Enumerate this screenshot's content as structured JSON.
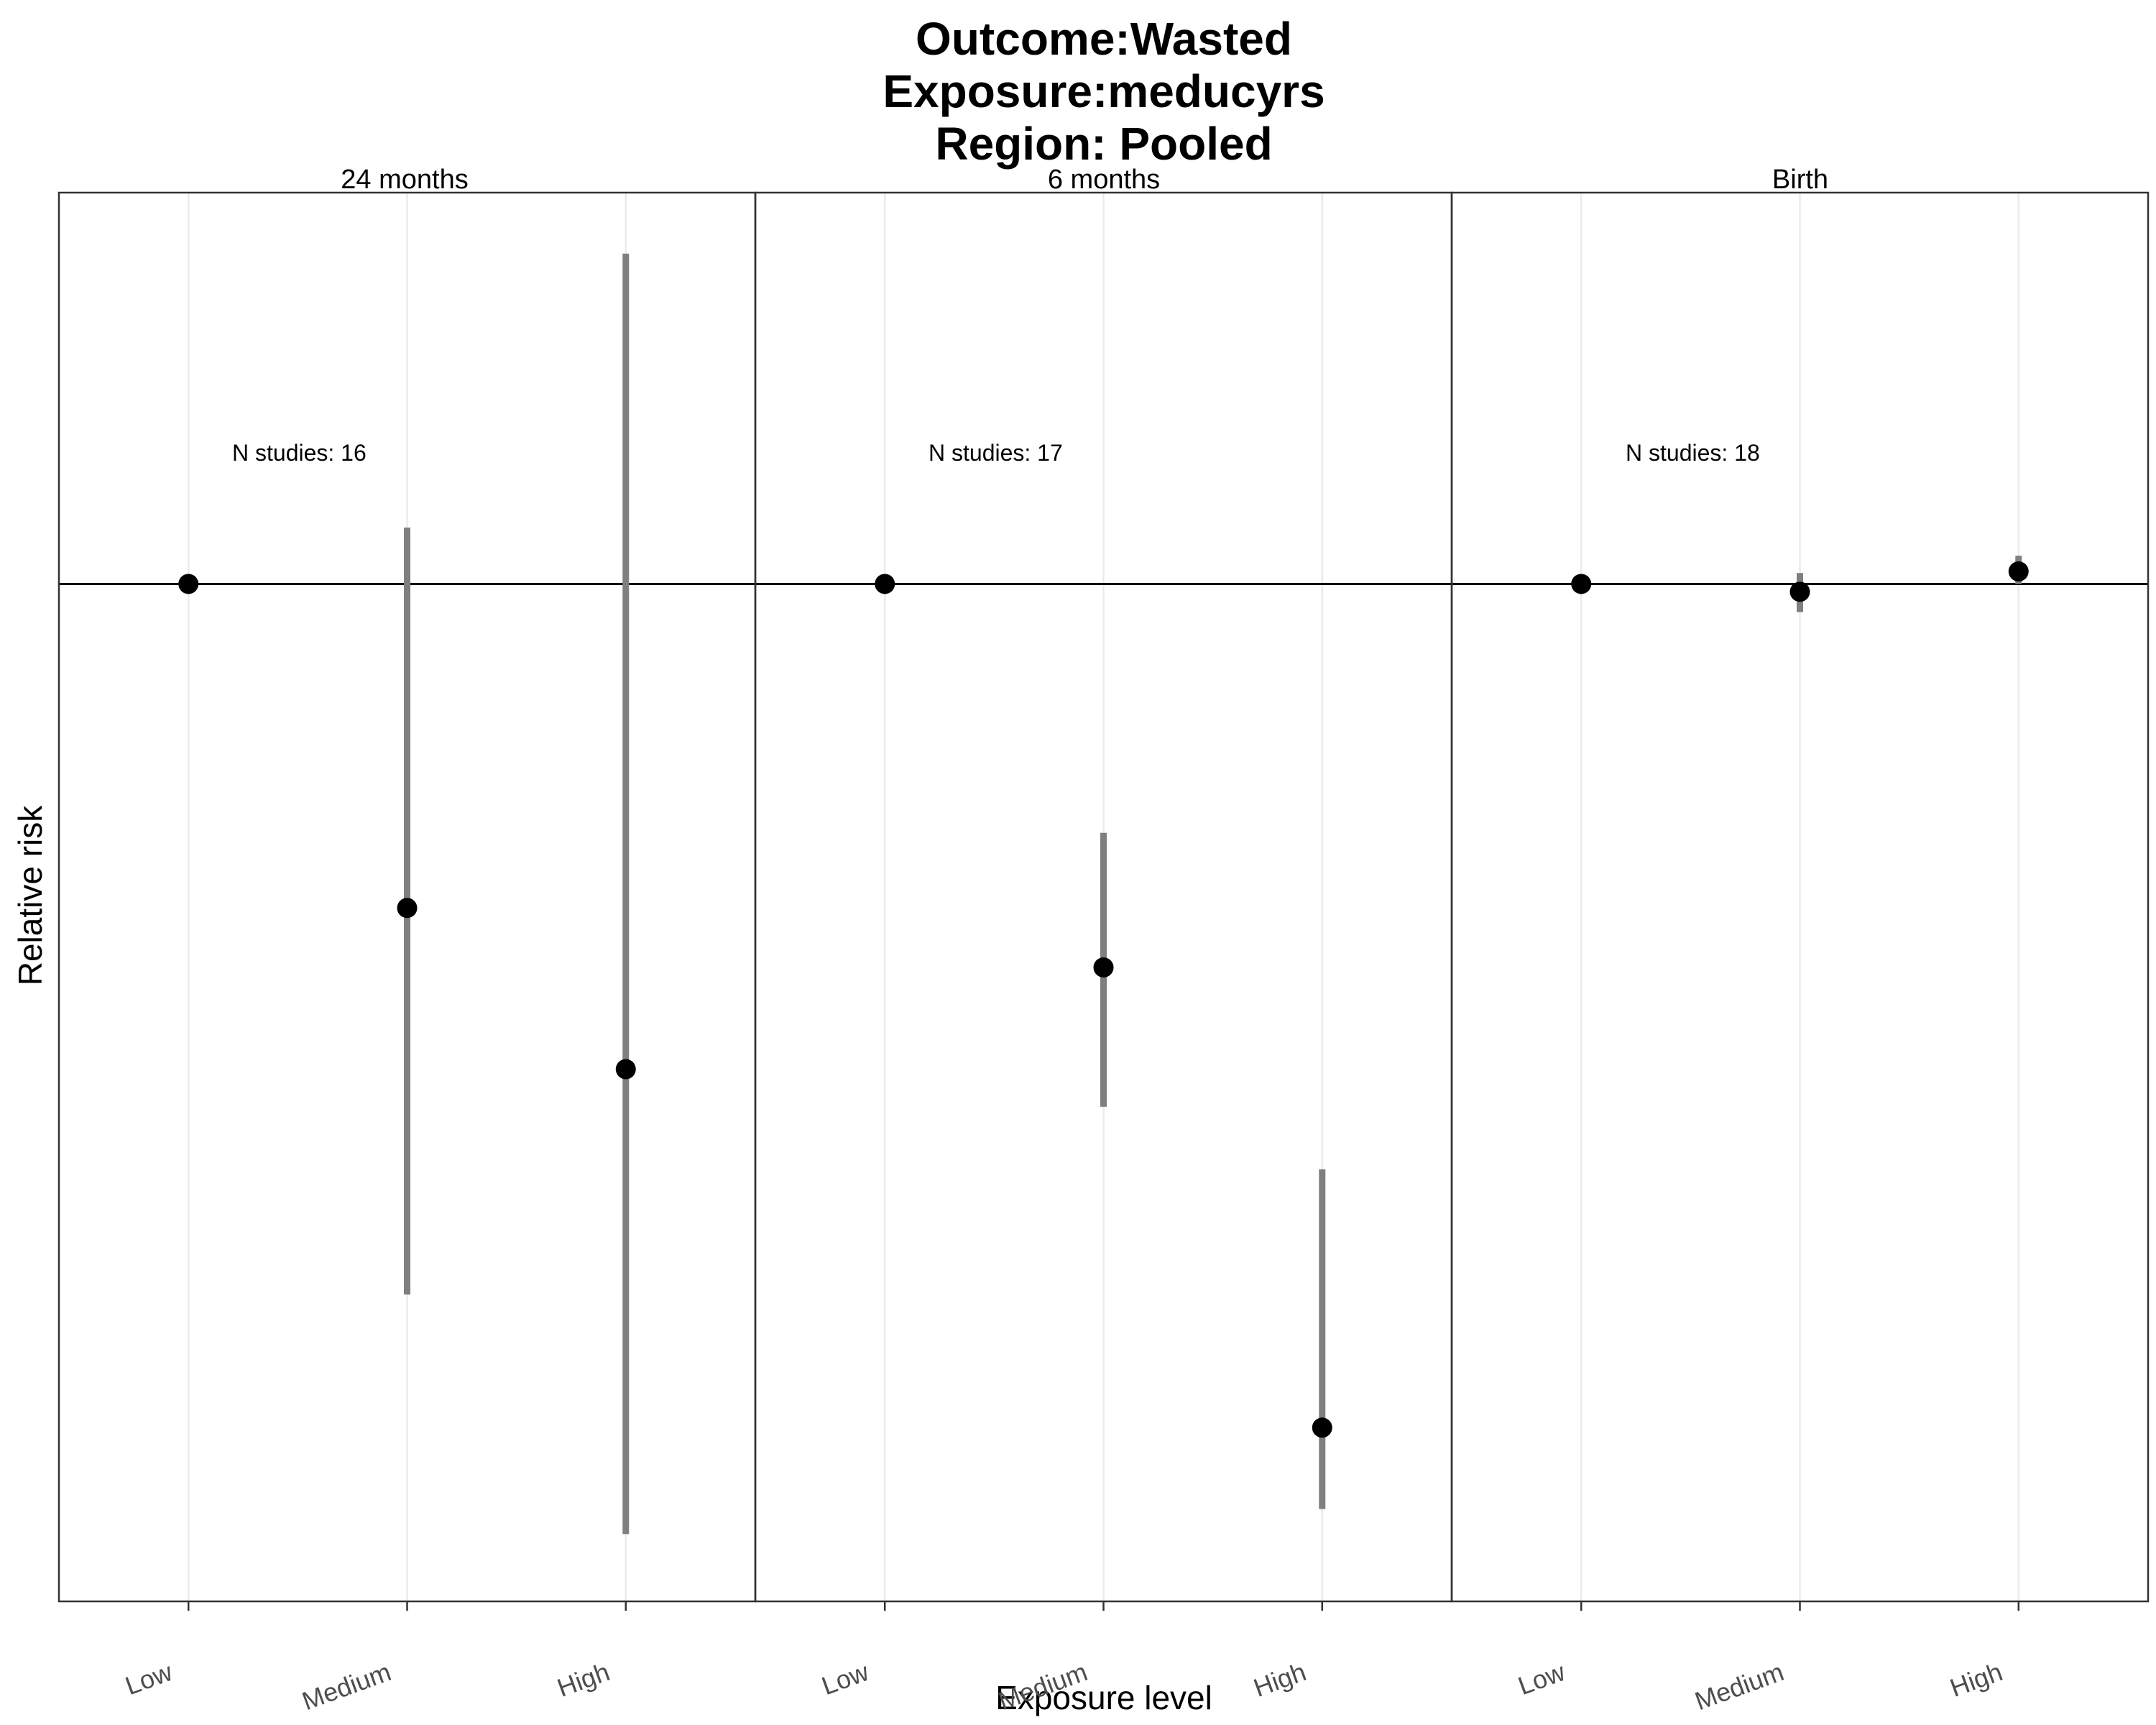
{
  "chart_data": {
    "type": "scatter",
    "title": [
      "Outcome:Wasted",
      "Exposure:meducyrs",
      "Region: Pooled"
    ],
    "xlabel": "Exposure level",
    "ylabel": "Relative risk",
    "categories": [
      "Low",
      "Medium",
      "High"
    ],
    "reference_line": 1.0,
    "ylim": [
      0.35,
      1.25
    ],
    "grid": true,
    "facets": [
      {
        "label": "24 months",
        "annotation": "N studies: 16",
        "points": [
          {
            "x": "Low",
            "y": 1.0,
            "lower": 1.0,
            "upper": 1.0
          },
          {
            "x": "Medium",
            "y": 0.793,
            "lower": 0.546,
            "upper": 1.036
          },
          {
            "x": "High",
            "y": 0.69,
            "lower": 0.393,
            "upper": 1.211
          }
        ]
      },
      {
        "label": "6 months",
        "annotation": "N studies: 17",
        "points": [
          {
            "x": "Low",
            "y": 1.0,
            "lower": 1.0,
            "upper": 1.0
          },
          {
            "x": "Medium",
            "y": 0.755,
            "lower": 0.666,
            "upper": 0.841
          },
          {
            "x": "High",
            "y": 0.461,
            "lower": 0.409,
            "upper": 0.626
          }
        ]
      },
      {
        "label": "Birth",
        "annotation": "N studies: 18",
        "points": [
          {
            "x": "Low",
            "y": 1.0,
            "lower": 1.0,
            "upper": 1.0
          },
          {
            "x": "Medium",
            "y": 0.995,
            "lower": 0.982,
            "upper": 1.007
          },
          {
            "x": "High",
            "y": 1.008,
            "lower": 1.0,
            "upper": 1.018
          }
        ]
      }
    ],
    "colors": {
      "point": "#000000",
      "errorbar": "#7f7f7f",
      "grid": "#ebebeb",
      "refline": "#000000",
      "border": "#333333"
    }
  }
}
